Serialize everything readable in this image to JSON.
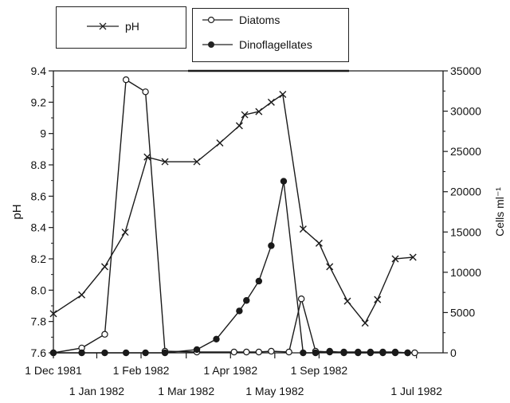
{
  "legend": {
    "ph_label": "pH",
    "diatoms_label": "Diatoms",
    "dino_label": "Dinoflagellates"
  },
  "chart_data": {
    "type": "line",
    "title": "",
    "ylabel_left": "pH",
    "ylabel_right": "Cells ml⁻¹",
    "y_left_ticks": [
      "9.4",
      "9.2",
      "9",
      "8.8",
      "8.6",
      "8.4",
      "8.2",
      "8.0",
      "7.8",
      "7.6"
    ],
    "y_left_range": [
      7.6,
      9.4
    ],
    "y_right_ticks": [
      "35000",
      "30000",
      "25000",
      "20000",
      "15000",
      "10000",
      "5000",
      "0"
    ],
    "y_right_range": [
      0,
      35000
    ],
    "x_range": [
      0,
      22
    ],
    "x_ticks_top": [
      {
        "x": 0,
        "label": "1 Dec 1981"
      },
      {
        "x": 4.95,
        "label": "1 Feb 1982"
      },
      {
        "x": 10,
        "label": "1 Apr 1982"
      },
      {
        "x": 15,
        "label": "1 Sep 1982"
      }
    ],
    "x_ticks_bottom": [
      {
        "x": 2.45,
        "label": "1 Jan 1982"
      },
      {
        "x": 7.5,
        "label": "1 Mar 1982"
      },
      {
        "x": 12.5,
        "label": "1 May 1982"
      },
      {
        "x": 20.5,
        "label": "1 Jul 1982"
      }
    ],
    "series": [
      {
        "name": "pH",
        "axis": "left",
        "marker": "x",
        "points": [
          [
            0,
            7.85
          ],
          [
            1.6,
            7.97
          ],
          [
            2.9,
            8.15
          ],
          [
            4.05,
            8.37
          ],
          [
            5.3,
            8.85
          ],
          [
            6.3,
            8.82
          ],
          [
            8.1,
            8.82
          ],
          [
            9.4,
            8.94
          ],
          [
            10.5,
            9.05
          ],
          [
            10.8,
            9.12
          ],
          [
            11.6,
            9.14
          ],
          [
            12.3,
            9.2
          ],
          [
            12.95,
            9.25
          ],
          [
            14.1,
            8.39
          ],
          [
            15.0,
            8.3
          ],
          [
            15.6,
            8.15
          ],
          [
            16.6,
            7.93
          ],
          [
            17.6,
            7.79
          ],
          [
            18.3,
            7.94
          ],
          [
            19.3,
            8.2
          ],
          [
            20.3,
            8.21
          ]
        ]
      },
      {
        "name": "Diatoms",
        "axis": "right",
        "marker": "open-circle",
        "points": [
          [
            0,
            0
          ],
          [
            1.6,
            600
          ],
          [
            2.9,
            2300
          ],
          [
            4.1,
            33900
          ],
          [
            5.2,
            32400
          ],
          [
            6.3,
            200
          ],
          [
            8.1,
            100
          ],
          [
            10.2,
            100
          ],
          [
            10.9,
            100
          ],
          [
            11.6,
            100
          ],
          [
            12.3,
            200
          ],
          [
            13.3,
            100
          ],
          [
            14.0,
            6700
          ],
          [
            14.8,
            200
          ],
          [
            15.6,
            100
          ],
          [
            16.4,
            100
          ],
          [
            17.2,
            100
          ],
          [
            17.9,
            100
          ],
          [
            18.6,
            100
          ],
          [
            19.3,
            100
          ],
          [
            20.0,
            0
          ],
          [
            20.4,
            0
          ]
        ]
      },
      {
        "name": "Dinoflagellates",
        "axis": "right",
        "marker": "filled-circle",
        "points": [
          [
            0,
            0
          ],
          [
            1.6,
            0
          ],
          [
            2.9,
            0
          ],
          [
            4.1,
            0
          ],
          [
            5.2,
            0
          ],
          [
            6.3,
            0
          ],
          [
            8.1,
            400
          ],
          [
            9.2,
            1700
          ],
          [
            10.5,
            5200
          ],
          [
            10.9,
            6500
          ],
          [
            11.6,
            8900
          ],
          [
            12.3,
            13300
          ],
          [
            13.0,
            21300
          ],
          [
            14.1,
            0
          ],
          [
            14.8,
            0
          ],
          [
            15.6,
            200
          ],
          [
            16.4,
            0
          ],
          [
            17.2,
            0
          ],
          [
            17.9,
            0
          ],
          [
            18.6,
            0
          ],
          [
            19.3,
            0
          ],
          [
            20.0,
            0
          ]
        ]
      }
    ]
  }
}
